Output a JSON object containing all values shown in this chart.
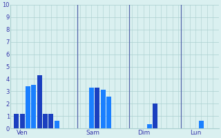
{
  "bars": [
    {
      "x": 1,
      "height": 1.2,
      "color": "#1a3fbf"
    },
    {
      "x": 2,
      "height": 1.2,
      "color": "#1a3fbf"
    },
    {
      "x": 3,
      "height": 3.4,
      "color": "#1a7fff"
    },
    {
      "x": 4,
      "height": 3.5,
      "color": "#1a7fff"
    },
    {
      "x": 5,
      "height": 4.3,
      "color": "#1a3fbf"
    },
    {
      "x": 6,
      "height": 1.2,
      "color": "#1a3fbf"
    },
    {
      "x": 7,
      "height": 1.2,
      "color": "#1a3fbf"
    },
    {
      "x": 8,
      "height": 0.6,
      "color": "#1a7fff"
    },
    {
      "x": 14,
      "height": 3.3,
      "color": "#1a7fff"
    },
    {
      "x": 15,
      "height": 3.3,
      "color": "#1a3fbf"
    },
    {
      "x": 16,
      "height": 3.15,
      "color": "#1a7fff"
    },
    {
      "x": 17,
      "height": 2.6,
      "color": "#1a7fff"
    },
    {
      "x": 24,
      "height": 0.35,
      "color": "#1a7fff"
    },
    {
      "x": 25,
      "height": 2.0,
      "color": "#1a3fbf"
    },
    {
      "x": 33,
      "height": 0.6,
      "color": "#1a7fff"
    }
  ],
  "day_labels": [
    {
      "label": "Ven",
      "x": 1
    },
    {
      "label": "Sam",
      "x": 13
    },
    {
      "label": "Dim",
      "x": 22
    },
    {
      "label": "Lun",
      "x": 31
    }
  ],
  "vline_positions": [
    11.5,
    20.5,
    29.5
  ],
  "xlim": [
    0,
    36
  ],
  "ylim": [
    0,
    10
  ],
  "yticks": [
    0,
    1,
    2,
    3,
    4,
    5,
    6,
    7,
    8,
    9,
    10
  ],
  "bg_color": "#daf0f0",
  "grid_color": "#aacfcf",
  "bar_width": 0.85,
  "vline_color": "#5566aa",
  "tick_color": "#3333aa",
  "ylabel_fontsize": 6,
  "xlabel_fontsize": 6.5
}
